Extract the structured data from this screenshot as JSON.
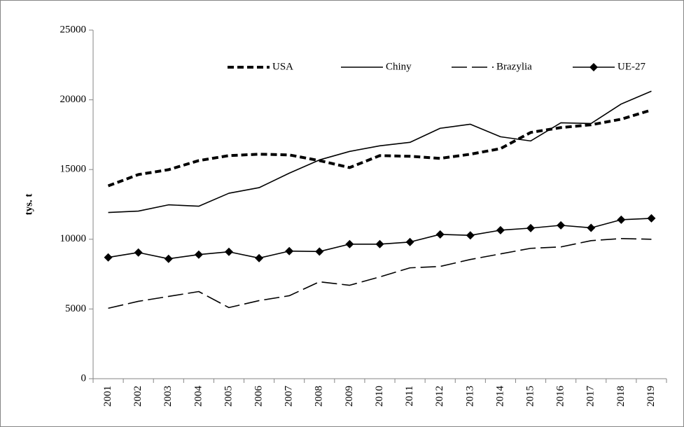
{
  "chart_data": {
    "type": "line",
    "y_label": "tys. t",
    "categories": [
      "2001",
      "2002",
      "2003",
      "2004",
      "2005",
      "2006",
      "2007",
      "2008",
      "2009",
      "2010",
      "2011",
      "2012",
      "2013",
      "2014",
      "2015",
      "2016",
      "2017",
      "2018",
      "2019"
    ],
    "series": [
      {
        "name": "USA",
        "color": "#000000",
        "line_style": "dashed",
        "values": [
          13830,
          14640,
          14990,
          15640,
          16000,
          16100,
          16050,
          15640,
          15140,
          16000,
          15950,
          15800,
          16100,
          16500,
          17660,
          18010,
          18210,
          18610,
          19270
        ]
      },
      {
        "name": "Chiny",
        "color": "#000000",
        "line_style": "solid",
        "values": [
          11920,
          12020,
          12470,
          12370,
          13300,
          13700,
          14740,
          15690,
          16300,
          16700,
          16950,
          17960,
          18250,
          17350,
          17050,
          18350,
          18300,
          19700,
          20620
        ]
      },
      {
        "name": "Brazylia",
        "color": "#000000",
        "line_style": "long-dash",
        "values": [
          5050,
          5550,
          5900,
          6250,
          5100,
          5600,
          5950,
          6950,
          6700,
          7300,
          7950,
          8050,
          8550,
          8950,
          9350,
          9450,
          9900,
          10050,
          10000
        ]
      },
      {
        "name": "UE-27",
        "color": "#000000",
        "line_style": "solid",
        "marker": "diamond",
        "values": [
          8700,
          9050,
          8600,
          8900,
          9100,
          8650,
          9150,
          9120,
          9650,
          9650,
          9800,
          10350,
          10280,
          10650,
          10800,
          11000,
          10820,
          11400,
          11500
        ]
      }
    ],
    "ylim": [
      0,
      25000
    ],
    "yticks": [
      0,
      5000,
      10000,
      15000,
      20000,
      25000
    ],
    "grid": false,
    "legend": "top"
  }
}
